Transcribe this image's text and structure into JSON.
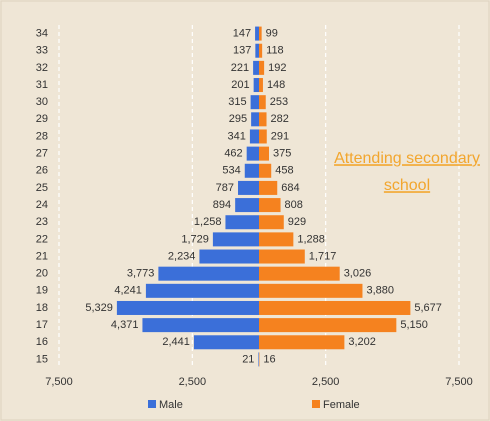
{
  "chart_data": {
    "type": "pyramid",
    "categories": [
      "34",
      "33",
      "32",
      "31",
      "30",
      "29",
      "28",
      "27",
      "26",
      "25",
      "24",
      "23",
      "22",
      "21",
      "20",
      "19",
      "18",
      "17",
      "16",
      "15"
    ],
    "series": [
      {
        "name": "Male",
        "color": "#3b6fd9",
        "side": "left",
        "values": [
          147,
          137,
          221,
          201,
          315,
          295,
          341,
          462,
          534,
          787,
          894,
          1258,
          1729,
          2234,
          3773,
          4241,
          5329,
          4371,
          2441,
          21
        ],
        "value_labels": [
          "147",
          "137",
          "221",
          "201",
          "315",
          "295",
          "341",
          "462",
          "534",
          "787",
          "894",
          "1,258",
          "1,729",
          "2,234",
          "3,773",
          "4,241",
          "5,329",
          "4,371",
          "2,441",
          "21"
        ]
      },
      {
        "name": "Female",
        "color": "#f5821f",
        "side": "right",
        "values": [
          99,
          118,
          192,
          148,
          253,
          282,
          291,
          375,
          458,
          684,
          808,
          929,
          1288,
          1717,
          3026,
          3880,
          5677,
          5150,
          3202,
          16
        ],
        "value_labels": [
          "99",
          "118",
          "192",
          "148",
          "253",
          "282",
          "291",
          "375",
          "458",
          "684",
          "808",
          "929",
          "1,288",
          "1,717",
          "3,026",
          "3,880",
          "5,677",
          "5,150",
          "3,202",
          "16"
        ]
      }
    ],
    "xlim": [
      -7500,
      7500
    ],
    "xticks": [
      {
        "value": -7500,
        "label": "7,500"
      },
      {
        "value": -2500,
        "label": "2,500"
      },
      {
        "value": 2500,
        "label": "2,500"
      },
      {
        "value": 7500,
        "label": "7,500"
      }
    ],
    "grid": true,
    "legend": "bottom",
    "annotation": [
      "Attending secondary",
      "school"
    ],
    "annotation_color": "#f2a62e"
  }
}
